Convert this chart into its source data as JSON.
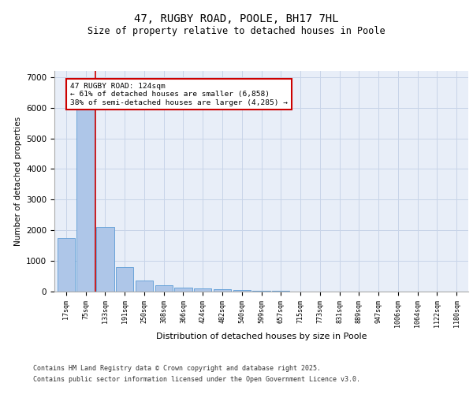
{
  "title1": "47, RUGBY ROAD, POOLE, BH17 7HL",
  "title2": "Size of property relative to detached houses in Poole",
  "xlabel": "Distribution of detached houses by size in Poole",
  "ylabel": "Number of detached properties",
  "categories": [
    "17sqm",
    "75sqm",
    "133sqm",
    "191sqm",
    "250sqm",
    "308sqm",
    "366sqm",
    "424sqm",
    "482sqm",
    "540sqm",
    "599sqm",
    "657sqm",
    "715sqm",
    "773sqm",
    "831sqm",
    "889sqm",
    "947sqm",
    "1006sqm",
    "1064sqm",
    "1122sqm",
    "1180sqm"
  ],
  "values": [
    1750,
    5950,
    2100,
    800,
    350,
    200,
    130,
    100,
    70,
    55,
    30,
    15,
    8,
    5,
    3,
    2,
    1,
    1,
    1,
    1,
    1
  ],
  "bar_color": "#aec6e8",
  "bar_edge_color": "#5b9bd5",
  "vline_x": 1.5,
  "vline_color": "#cc0000",
  "annotation_text_line1": "47 RUGBY ROAD: 124sqm",
  "annotation_text_line2": "← 61% of detached houses are smaller (6,858)",
  "annotation_text_line3": "38% of semi-detached houses are larger (4,285) →",
  "ylim": [
    0,
    7200
  ],
  "yticks": [
    0,
    1000,
    2000,
    3000,
    4000,
    5000,
    6000,
    7000
  ],
  "bg_color": "#e8eef8",
  "footer1": "Contains HM Land Registry data © Crown copyright and database right 2025.",
  "footer2": "Contains public sector information licensed under the Open Government Licence v3.0."
}
